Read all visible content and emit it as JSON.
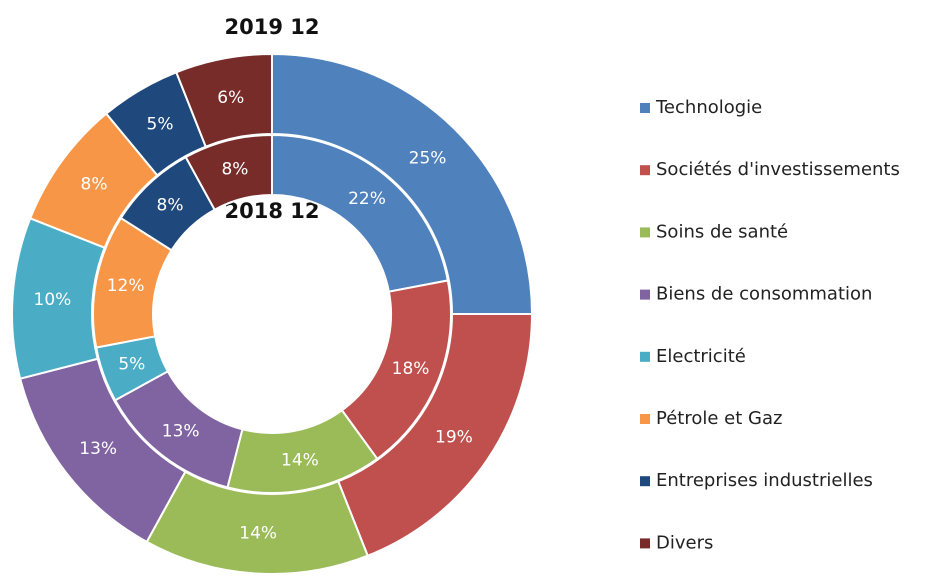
{
  "chart_data": {
    "type": "donut",
    "categories": [
      "Technologie",
      "Sociétés d'investissements",
      "Soins de santé",
      "Biens de consommation",
      "Electricité",
      "Pétrole et Gaz",
      "Entreprises industrielles",
      "Divers"
    ],
    "colors": [
      "#4f81bd",
      "#c0504d",
      "#9bbb59",
      "#8064a2",
      "#4bacc6",
      "#f79646",
      "#1f497d",
      "#772c2a"
    ],
    "series": [
      {
        "name": "2019 12",
        "values": [
          25,
          19,
          14,
          13,
          10,
          8,
          5,
          6
        ],
        "value_labels": [
          "25%",
          "19%",
          "14%",
          "13%",
          "10%",
          "8%",
          "5%",
          "6%"
        ]
      },
      {
        "name": "2018 12",
        "values": [
          22,
          18,
          14,
          13,
          5,
          12,
          8,
          8
        ],
        "value_labels": [
          "22%",
          "18%",
          "14%",
          "13%",
          "5%",
          "12%",
          "8%",
          "8%"
        ]
      }
    ],
    "legend": "right"
  }
}
